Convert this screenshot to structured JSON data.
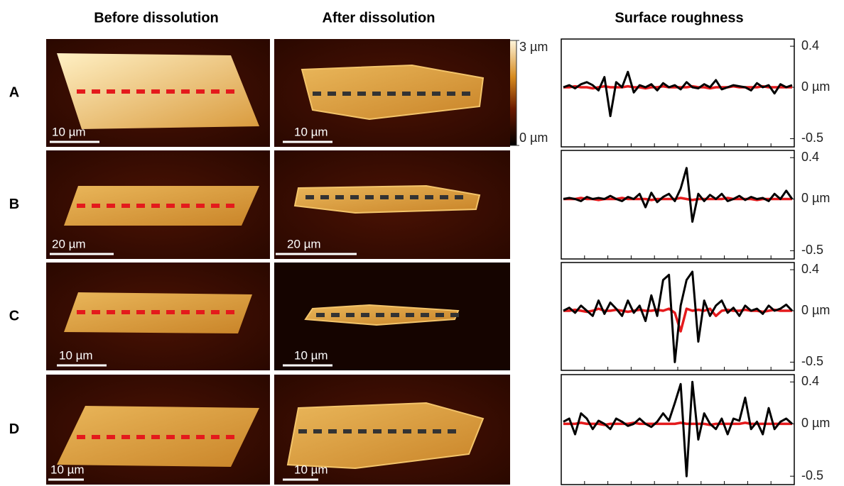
{
  "columns": [
    "Before dissolution",
    "After dissolution",
    "Surface roughness"
  ],
  "rows": [
    {
      "label": "A",
      "before_scale": "10 µm",
      "after_scale": "10 µm"
    },
    {
      "label": "B",
      "before_scale": "20 µm",
      "after_scale": "20 µm"
    },
    {
      "label": "C",
      "before_scale": "10 µm",
      "after_scale": "10 µm"
    },
    {
      "label": "D",
      "before_scale": "10 µm",
      "after_scale": "10 µm"
    }
  ],
  "colorbar": {
    "lim": [
      0,
      3
    ],
    "ticks": [
      {
        "value": 3,
        "label": "3 µm"
      },
      {
        "value": 0,
        "label": "0 µm"
      }
    ]
  },
  "chart_data": [
    {
      "type": "line",
      "ylim": [
        -0.58,
        0.47
      ],
      "yticks": [
        0.4,
        {
          "value": 0,
          "label": "0 µm"
        },
        -0.5
      ],
      "series": [
        {
          "color": "#e41a1c",
          "values": [
            0,
            0,
            0.01,
            0,
            0,
            -0.01,
            0,
            0.01,
            0,
            0,
            0,
            0.01,
            0,
            0,
            -0.01,
            0,
            0,
            0.01,
            0,
            0,
            0,
            0,
            0.01,
            0,
            0,
            -0.01,
            0,
            0,
            0,
            0.01,
            0,
            0,
            0,
            0,
            0.01,
            0,
            0,
            0,
            0,
            0
          ]
        },
        {
          "color": "#000000",
          "values": [
            0,
            0.02,
            -0.01,
            0.03,
            0.05,
            0.02,
            -0.03,
            0.1,
            -0.28,
            0.05,
            0,
            0.15,
            -0.05,
            0.02,
            0,
            0.03,
            -0.03,
            0.04,
            0,
            0.02,
            -0.02,
            0.05,
            0,
            -0.01,
            0.03,
            0,
            0.07,
            -0.02,
            0,
            0.02,
            0.01,
            0,
            -0.03,
            0.04,
            0,
            0.02,
            -0.06,
            0.03,
            0,
            0.02
          ]
        }
      ]
    },
    {
      "type": "line",
      "ylim": [
        -0.58,
        0.47
      ],
      "yticks": [
        0.4,
        {
          "value": 0,
          "label": "0 µm"
        },
        -0.5
      ],
      "series": [
        {
          "color": "#e41a1c",
          "values": [
            0,
            0,
            0,
            0.01,
            0,
            0,
            -0.01,
            0,
            0,
            0,
            0.01,
            0,
            0,
            0,
            0,
            -0.01,
            0,
            0,
            0,
            0,
            0.01,
            0,
            -0.01,
            0,
            0,
            0,
            0,
            0,
            0.01,
            0,
            0,
            0,
            0,
            -0.01,
            0,
            0,
            0,
            0,
            0,
            0
          ]
        },
        {
          "color": "#000000",
          "values": [
            0,
            0.01,
            0,
            -0.02,
            0.02,
            0,
            0.01,
            0,
            0.03,
            0,
            -0.02,
            0.02,
            0,
            0.05,
            -0.08,
            0.06,
            -0.03,
            0.02,
            0.05,
            -0.02,
            0.1,
            0.3,
            -0.22,
            0.05,
            -0.02,
            0.04,
            0,
            0.05,
            -0.02,
            0,
            0.03,
            -0.01,
            0.02,
            0,
            0.01,
            -0.02,
            0.05,
            0,
            0.08,
            0
          ]
        }
      ]
    },
    {
      "type": "line",
      "ylim": [
        -0.58,
        0.47
      ],
      "yticks": [
        0.4,
        {
          "value": 0,
          "label": "0 µm"
        },
        -0.5
      ],
      "series": [
        {
          "color": "#e41a1c",
          "values": [
            0,
            0,
            0.01,
            0,
            -0.01,
            0,
            0.02,
            0,
            0,
            0.01,
            0,
            -0.01,
            0,
            0.01,
            0,
            0,
            0.01,
            0,
            0.02,
            -0.02,
            -0.2,
            0.02,
            0,
            0.01,
            0,
            0.02,
            -0.05,
            0,
            0.01,
            0,
            0,
            0.01,
            0,
            0,
            -0.01,
            0,
            0.01,
            0,
            0,
            0
          ]
        },
        {
          "color": "#000000",
          "values": [
            0,
            0.03,
            -0.02,
            0.05,
            0,
            -0.05,
            0.1,
            -0.03,
            0.08,
            0.02,
            -0.05,
            0.1,
            -0.02,
            0.05,
            -0.1,
            0.15,
            -0.05,
            0.3,
            0.35,
            -0.5,
            0.05,
            0.3,
            0.38,
            -0.3,
            0.1,
            -0.05,
            0.05,
            0.1,
            -0.02,
            0.03,
            -0.05,
            0.05,
            0,
            0.02,
            -0.03,
            0.05,
            0,
            0.02,
            0.06,
            0
          ]
        }
      ]
    },
    {
      "type": "line",
      "ylim": [
        -0.58,
        0.47
      ],
      "yticks": [
        0.4,
        {
          "value": 0,
          "label": "0 µm"
        },
        -0.5
      ],
      "series": [
        {
          "color": "#e41a1c",
          "values": [
            0,
            0,
            0,
            0.01,
            0,
            0,
            0,
            -0.01,
            0,
            0,
            0,
            0,
            0.01,
            0,
            0,
            0,
            0,
            0,
            0,
            0,
            0.01,
            0,
            0,
            0,
            0,
            -0.01,
            0,
            0,
            0,
            0,
            0,
            0.01,
            0,
            0,
            0,
            0,
            0,
            0,
            0,
            0
          ]
        },
        {
          "color": "#000000",
          "values": [
            0.02,
            0.05,
            -0.1,
            0.1,
            0.05,
            -0.05,
            0.03,
            0,
            -0.05,
            0.05,
            0.02,
            -0.02,
            0,
            0.05,
            0,
            -0.03,
            0.02,
            0.1,
            0.03,
            0.2,
            0.38,
            -0.5,
            0.4,
            -0.15,
            0.1,
            0,
            -0.05,
            0.05,
            -0.1,
            0.05,
            0.03,
            0.25,
            -0.05,
            0.02,
            -0.1,
            0.15,
            -0.05,
            0.02,
            0.05,
            0
          ]
        }
      ]
    }
  ]
}
